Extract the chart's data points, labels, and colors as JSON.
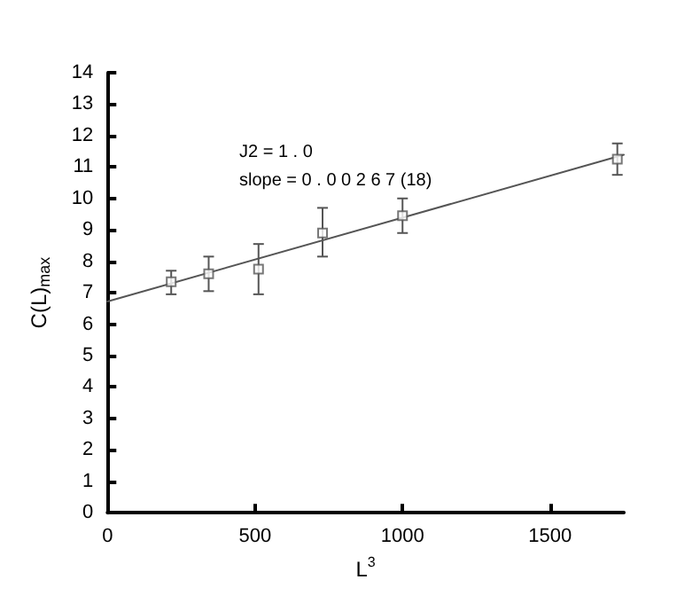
{
  "chart_data": {
    "type": "scatter",
    "xlabel": "L$^{3}$",
    "ylabel": "C(L)$_{max}$",
    "annotations": [
      "J2 = 1 . 0",
      "slope = 0 . 0 0 2 6 7 (18)"
    ],
    "xlim": [
      0,
      1750
    ],
    "xticks": [
      0,
      500,
      1000,
      1500
    ],
    "ylim": [
      0,
      14
    ],
    "yticks": [
      0,
      1,
      2,
      3,
      4,
      5,
      6,
      7,
      8,
      9,
      10,
      11,
      12,
      13,
      14
    ],
    "grid": false,
    "marker": "square",
    "series": [
      {
        "color": "#555555",
        "x": [
          216,
          343,
          512,
          729,
          1000,
          1728
        ],
        "values": [
          7.35,
          7.6,
          7.75,
          8.9,
          9.45,
          11.25
        ],
        "errors": [
          [
            6.95,
            7.7
          ],
          [
            7.05,
            8.15
          ],
          [
            6.95,
            8.55
          ],
          [
            8.15,
            9.7
          ],
          [
            8.9,
            10.0
          ],
          [
            10.75,
            11.75
          ]
        ]
      },
      {
        "type": "line",
        "color": "#555555",
        "marker": "none",
        "line_style": "solid",
        "x": [
          0,
          1750
        ],
        "values": [
          6.72,
          11.39
        ]
      }
    ]
  }
}
